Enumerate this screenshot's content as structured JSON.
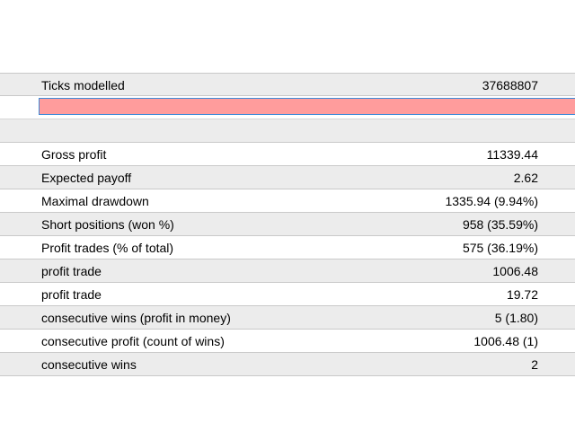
{
  "report": {
    "header_row": {
      "label": "Ticks modelled",
      "value": "37688807"
    },
    "highlight_row": {
      "color": "#ff9c9c",
      "border_color": "#3c8ad8"
    },
    "rows": [
      {
        "label": "Gross profit",
        "value": "11339.44"
      },
      {
        "label": "Expected payoff",
        "value": "2.62"
      },
      {
        "label": "Maximal drawdown",
        "value": "1335.94 (9.94%)"
      },
      {
        "label": "Short positions (won %)",
        "value": "958 (35.59%)"
      },
      {
        "label": "Profit trades (% of total)",
        "value": "575 (36.19%)"
      },
      {
        "label": "profit trade",
        "value": "1006.48"
      },
      {
        "label": "profit trade",
        "value": "19.72"
      },
      {
        "label": "consecutive wins (profit in money)",
        "value": "5 (1.80)"
      },
      {
        "label": "consecutive profit (count of wins)",
        "value": "1006.48 (1)"
      },
      {
        "label": "consecutive wins",
        "value": "2"
      }
    ]
  }
}
